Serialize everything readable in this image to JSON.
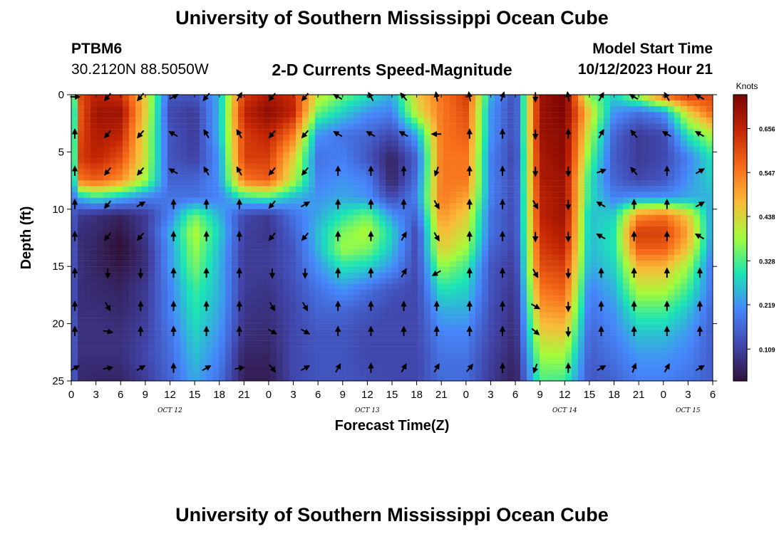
{
  "header": {
    "title": "University of Southern Mississippi Ocean Cube",
    "station": "PTBM6",
    "coords": "30.2120N  88.5050W",
    "subtitle": "2-D Currents Speed-Magnitude",
    "model_start_label": "Model Start Time",
    "model_start_value": "10/12/2023 Hour 21"
  },
  "footer": {
    "title": "University of Southern Mississippi Ocean Cube"
  },
  "chart_data": {
    "type": "heatmap",
    "title": "2-D Currents Speed-Magnitude",
    "xlabel": "Forecast Time(Z)",
    "ylabel": "Depth (ft)",
    "colorbar_label": "Knots",
    "x_ticks": [
      "0",
      "3",
      "6",
      "9",
      "12",
      "15",
      "18",
      "21",
      "0",
      "3",
      "6",
      "9",
      "12",
      "15",
      "18",
      "21",
      "0",
      "3",
      "6",
      "9",
      "12",
      "15",
      "18",
      "21",
      "0",
      "3",
      "6"
    ],
    "date_labels": [
      {
        "label": "OCT 12",
        "hour_index": 12
      },
      {
        "label": "OCT 13",
        "hour_index": 36
      },
      {
        "label": "OCT 14",
        "hour_index": 60
      },
      {
        "label": "OCT 15",
        "hour_index": 75
      }
    ],
    "hour_range": [
      0,
      78
    ],
    "y_ticks": [
      0,
      5,
      10,
      15,
      20,
      25
    ],
    "ylim": [
      0,
      25
    ],
    "colorbar_ticks": [
      0.109,
      0.219,
      0.328,
      0.438,
      0.547,
      0.656
    ],
    "color_range": [
      0.03,
      0.74
    ],
    "colors": [
      "#30123b",
      "#4146ac",
      "#4686fb",
      "#1ae4b6",
      "#a2fc3c",
      "#faba39",
      "#f66b19",
      "#c42503",
      "#7a0403"
    ],
    "depths": [
      0,
      1.5,
      3.5,
      5.5,
      7.5,
      9,
      10.5,
      12,
      13.5,
      15,
      17,
      19,
      21,
      23,
      25
    ],
    "hours": [
      0,
      1,
      3,
      6,
      9,
      12,
      15,
      18,
      21,
      24,
      27,
      30,
      33,
      36,
      39,
      42,
      45,
      48,
      51,
      54,
      57,
      60,
      63,
      66,
      69,
      72,
      75,
      78
    ],
    "speed_knots": [
      [
        0.18,
        0.6,
        0.66,
        0.64,
        0.45,
        0.15,
        0.14,
        0.25,
        0.62,
        0.68,
        0.64,
        0.42,
        0.35,
        0.3,
        0.24,
        0.45,
        0.55,
        0.62,
        0.25,
        0.12,
        0.7,
        0.74,
        0.35,
        0.28,
        0.4,
        0.58,
        0.64,
        0.6
      ],
      [
        0.14,
        0.58,
        0.7,
        0.7,
        0.45,
        0.12,
        0.1,
        0.25,
        0.66,
        0.72,
        0.66,
        0.35,
        0.28,
        0.22,
        0.2,
        0.42,
        0.55,
        0.6,
        0.22,
        0.12,
        0.7,
        0.74,
        0.45,
        0.22,
        0.18,
        0.22,
        0.45,
        0.58
      ],
      [
        0.14,
        0.6,
        0.68,
        0.66,
        0.42,
        0.14,
        0.1,
        0.25,
        0.62,
        0.66,
        0.55,
        0.22,
        0.18,
        0.16,
        0.12,
        0.24,
        0.55,
        0.58,
        0.22,
        0.12,
        0.7,
        0.72,
        0.4,
        0.16,
        0.1,
        0.12,
        0.3,
        0.4
      ],
      [
        0.14,
        0.62,
        0.66,
        0.6,
        0.42,
        0.14,
        0.11,
        0.22,
        0.62,
        0.62,
        0.45,
        0.18,
        0.2,
        0.14,
        0.06,
        0.16,
        0.55,
        0.55,
        0.2,
        0.11,
        0.68,
        0.72,
        0.35,
        0.15,
        0.1,
        0.12,
        0.2,
        0.3
      ],
      [
        0.14,
        0.55,
        0.58,
        0.52,
        0.38,
        0.16,
        0.16,
        0.22,
        0.55,
        0.58,
        0.4,
        0.2,
        0.22,
        0.2,
        0.06,
        0.18,
        0.55,
        0.55,
        0.2,
        0.12,
        0.68,
        0.7,
        0.3,
        0.16,
        0.12,
        0.14,
        0.22,
        0.28
      ],
      [
        0.16,
        0.25,
        0.3,
        0.25,
        0.2,
        0.18,
        0.18,
        0.2,
        0.3,
        0.32,
        0.25,
        0.22,
        0.24,
        0.22,
        0.12,
        0.2,
        0.55,
        0.5,
        0.2,
        0.12,
        0.66,
        0.7,
        0.3,
        0.2,
        0.22,
        0.22,
        0.24,
        0.25
      ],
      [
        0.16,
        0.1,
        0.08,
        0.06,
        0.1,
        0.2,
        0.35,
        0.25,
        0.12,
        0.1,
        0.18,
        0.24,
        0.3,
        0.35,
        0.22,
        0.16,
        0.52,
        0.45,
        0.18,
        0.12,
        0.66,
        0.7,
        0.26,
        0.28,
        0.52,
        0.55,
        0.45,
        0.22
      ],
      [
        0.16,
        0.08,
        0.07,
        0.04,
        0.1,
        0.24,
        0.4,
        0.28,
        0.11,
        0.09,
        0.16,
        0.26,
        0.36,
        0.4,
        0.28,
        0.12,
        0.48,
        0.42,
        0.18,
        0.12,
        0.64,
        0.68,
        0.26,
        0.3,
        0.62,
        0.62,
        0.5,
        0.22
      ],
      [
        0.16,
        0.08,
        0.06,
        0.02,
        0.08,
        0.22,
        0.38,
        0.26,
        0.1,
        0.1,
        0.14,
        0.25,
        0.38,
        0.36,
        0.26,
        0.12,
        0.45,
        0.38,
        0.16,
        0.11,
        0.62,
        0.66,
        0.25,
        0.3,
        0.58,
        0.58,
        0.46,
        0.2
      ],
      [
        0.16,
        0.08,
        0.06,
        0.04,
        0.08,
        0.22,
        0.36,
        0.25,
        0.1,
        0.1,
        0.14,
        0.22,
        0.3,
        0.28,
        0.22,
        0.12,
        0.38,
        0.32,
        0.14,
        0.1,
        0.6,
        0.62,
        0.24,
        0.28,
        0.48,
        0.48,
        0.38,
        0.18
      ],
      [
        0.16,
        0.08,
        0.07,
        0.06,
        0.1,
        0.2,
        0.32,
        0.25,
        0.1,
        0.09,
        0.13,
        0.18,
        0.22,
        0.18,
        0.14,
        0.12,
        0.3,
        0.28,
        0.14,
        0.09,
        0.55,
        0.58,
        0.2,
        0.25,
        0.4,
        0.4,
        0.32,
        0.18
      ],
      [
        0.16,
        0.08,
        0.08,
        0.07,
        0.1,
        0.2,
        0.3,
        0.24,
        0.09,
        0.08,
        0.12,
        0.16,
        0.16,
        0.14,
        0.12,
        0.12,
        0.24,
        0.24,
        0.13,
        0.08,
        0.5,
        0.52,
        0.18,
        0.22,
        0.32,
        0.32,
        0.26,
        0.16
      ],
      [
        0.17,
        0.08,
        0.08,
        0.08,
        0.11,
        0.18,
        0.28,
        0.22,
        0.08,
        0.07,
        0.12,
        0.14,
        0.14,
        0.12,
        0.12,
        0.12,
        0.2,
        0.2,
        0.12,
        0.07,
        0.44,
        0.45,
        0.16,
        0.2,
        0.26,
        0.26,
        0.22,
        0.15
      ],
      [
        0.17,
        0.08,
        0.08,
        0.08,
        0.12,
        0.17,
        0.26,
        0.2,
        0.06,
        0.06,
        0.12,
        0.14,
        0.14,
        0.12,
        0.12,
        0.12,
        0.18,
        0.18,
        0.11,
        0.06,
        0.38,
        0.38,
        0.15,
        0.18,
        0.22,
        0.22,
        0.2,
        0.15
      ],
      [
        0.18,
        0.07,
        0.06,
        0.06,
        0.1,
        0.16,
        0.24,
        0.18,
        0.05,
        0.05,
        0.12,
        0.14,
        0.14,
        0.13,
        0.12,
        0.12,
        0.17,
        0.17,
        0.1,
        0.05,
        0.33,
        0.32,
        0.14,
        0.16,
        0.2,
        0.2,
        0.18,
        0.15
      ]
    ],
    "vectors": {
      "hours": [
        0,
        4,
        8,
        12,
        16,
        20,
        24,
        28,
        32,
        36,
        40,
        44,
        48,
        52,
        56,
        60,
        64,
        68,
        72,
        76
      ],
      "depths": [
        0,
        3.25,
        6.5,
        9.4,
        12.2,
        15.4,
        18.3,
        20.5,
        23.7
      ],
      "angles_deg": [
        [
          90,
          220,
          220,
          60,
          220,
          30,
          220,
          220,
          300,
          330,
          320,
          350,
          350,
          20,
          180,
          350,
          30,
          300,
          330,
          300
        ],
        [
          0,
          220,
          220,
          300,
          330,
          330,
          220,
          220,
          300,
          300,
          300,
          270,
          0,
          0,
          180,
          0,
          30,
          320,
          300,
          300
        ],
        [
          0,
          220,
          220,
          300,
          330,
          330,
          220,
          220,
          0,
          0,
          0,
          200,
          0,
          0,
          180,
          180,
          70,
          320,
          0,
          60
        ],
        [
          0,
          220,
          60,
          0,
          0,
          0,
          220,
          60,
          0,
          0,
          0,
          150,
          0,
          0,
          150,
          180,
          300,
          0,
          0,
          60
        ],
        [
          0,
          220,
          220,
          0,
          0,
          0,
          220,
          220,
          0,
          0,
          30,
          150,
          0,
          0,
          180,
          180,
          300,
          0,
          0,
          300
        ],
        [
          0,
          180,
          180,
          0,
          0,
          0,
          180,
          180,
          0,
          0,
          30,
          240,
          0,
          0,
          150,
          180,
          0,
          0,
          0,
          0
        ],
        [
          0,
          150,
          0,
          0,
          0,
          0,
          150,
          150,
          0,
          0,
          0,
          0,
          0,
          0,
          120,
          180,
          0,
          0,
          0,
          0
        ],
        [
          0,
          100,
          0,
          0,
          0,
          0,
          120,
          120,
          0,
          0,
          0,
          0,
          0,
          0,
          130,
          180,
          0,
          0,
          0,
          0
        ],
        [
          60,
          80,
          60,
          0,
          60,
          80,
          140,
          60,
          30,
          0,
          30,
          30,
          40,
          0,
          200,
          0,
          60,
          20,
          30,
          60
        ]
      ]
    }
  }
}
